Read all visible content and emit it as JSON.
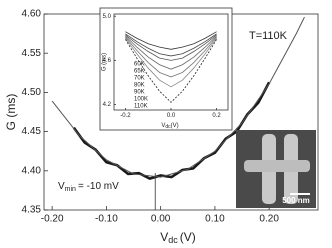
{
  "chart_data": [
    {
      "type": "line",
      "ylabel": "G (ms)",
      "xlabel": "V",
      "xlabel_sub": "dc",
      "xlabel_unit": "(V)",
      "temperature": "T=110K",
      "vmin_label": "V",
      "vmin_sub": "min",
      "vmin_text": "= -10 mV",
      "scale_bar": "500 nm",
      "vline_x": -0.01,
      "xlim": [
        -0.215,
        0.29
      ],
      "xticks": [
        {
          "value": -0.2,
          "label": "-0.20"
        },
        {
          "value": -0.1,
          "label": "-0.10"
        },
        {
          "value": 0,
          "label": "0.00"
        },
        {
          "value": 0.1,
          "label": "0.10"
        },
        {
          "value": 0.2,
          "label": "0.20"
        }
      ],
      "ylim": [
        4.35,
        4.6
      ],
      "yticks": [
        {
          "value": 4.35,
          "label": "4.35"
        },
        {
          "value": 4.4,
          "label": "4.40"
        },
        {
          "value": 4.45,
          "label": "4.45"
        },
        {
          "value": 4.5,
          "label": "4.50"
        },
        {
          "value": 4.55,
          "label": "4.55"
        },
        {
          "value": 4.6,
          "label": "4.60"
        }
      ],
      "series": [
        {
          "color": "#1a1a1a",
          "x": [
            -0.16,
            -0.14,
            -0.12,
            -0.1,
            -0.08,
            -0.06,
            -0.04,
            -0.02,
            0,
            0.02,
            0.04,
            0.06,
            0.08,
            0.1,
            0.12,
            0.14,
            0.16,
            0.18,
            0.2
          ],
          "values": [
            4.455,
            4.436,
            4.427,
            4.411,
            4.407,
            4.396,
            4.397,
            4.39,
            4.394,
            4.392,
            4.401,
            4.403,
            4.416,
            4.423,
            4.441,
            4.45,
            4.472,
            4.487,
            4.513
          ]
        },
        {
          "color": "#555555",
          "x": [
            -0.2,
            -0.15,
            -0.1,
            -0.05,
            0,
            0.05,
            0.1,
            0.15,
            0.2,
            0.25,
            0.265
          ],
          "values": [
            4.489,
            4.445,
            4.414,
            4.396,
            4.392,
            4.402,
            4.425,
            4.461,
            4.511,
            4.575,
            4.596
          ]
        }
      ]
    },
    {
      "type": "line",
      "ylabel": "G (ms)",
      "xlabel": "V",
      "xlabel_sub": "dc",
      "xlabel_unit": "(V)",
      "xlim": [
        -0.25,
        0.25
      ],
      "xticks": [
        {
          "value": -0.2,
          "label": "-0.2"
        },
        {
          "value": 0,
          "label": "0.0"
        },
        0.2
      ],
      "ylim": [
        4.15,
        5.02
      ],
      "yticks": [
        4.2,
        4.6,
        {
          "value": 5,
          "label": "5.0"
        }
      ],
      "x": [
        -0.2,
        -0.15,
        -0.1,
        -0.05,
        0,
        0.05,
        0.1,
        0.15,
        0.2
      ],
      "series": [
        {
          "name": "60K",
          "color": "#333333",
          "values": [
            4.86,
            4.8,
            4.75,
            4.72,
            4.7,
            4.72,
            4.75,
            4.8,
            4.86
          ]
        },
        {
          "name": "65K",
          "color": "#444444",
          "values": [
            4.84,
            4.77,
            4.71,
            4.66,
            4.64,
            4.66,
            4.71,
            4.77,
            4.84
          ]
        },
        {
          "name": "70K",
          "color": "#555555",
          "values": [
            4.83,
            4.75,
            4.68,
            4.62,
            4.6,
            4.62,
            4.68,
            4.75,
            4.83
          ]
        },
        {
          "name": "80K",
          "color": "#666666",
          "values": [
            4.82,
            4.72,
            4.63,
            4.56,
            4.52,
            4.56,
            4.63,
            4.72,
            4.82
          ]
        },
        {
          "name": "90K",
          "color": "#777777",
          "values": [
            4.81,
            4.69,
            4.58,
            4.49,
            4.45,
            4.49,
            4.58,
            4.69,
            4.81
          ]
        },
        {
          "name": "100K",
          "color": "#888888",
          "values": [
            4.8,
            4.66,
            4.53,
            4.42,
            4.36,
            4.42,
            4.53,
            4.66,
            4.8
          ]
        },
        {
          "name": "110K",
          "color": "#222222",
          "dashed": true,
          "values": [
            4.79,
            4.62,
            4.46,
            4.32,
            4.22,
            4.32,
            4.46,
            4.62,
            4.79
          ]
        }
      ]
    }
  ]
}
